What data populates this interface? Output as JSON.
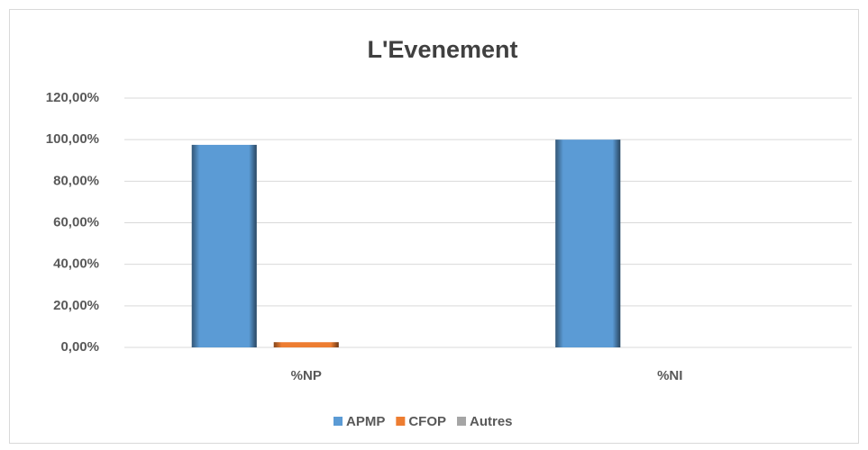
{
  "chart_data": {
    "type": "bar",
    "title": "L'Evenement",
    "categories": [
      "%NP",
      "%NI"
    ],
    "series": [
      {
        "name": "APMP",
        "color": "#5b9bd5",
        "values": [
          97.5,
          100
        ]
      },
      {
        "name": "CFOP",
        "color": "#ed7d31",
        "values": [
          2.5,
          0
        ]
      },
      {
        "name": "Autres",
        "color": "#a5a5a5",
        "values": [
          0,
          0
        ]
      }
    ],
    "ylim": [
      0,
      120
    ],
    "yticks": [
      {
        "value": 0,
        "label": "0,00%"
      },
      {
        "value": 20,
        "label": "20,00%"
      },
      {
        "value": 40,
        "label": "40,00%"
      },
      {
        "value": 60,
        "label": "60,00%"
      },
      {
        "value": 80,
        "label": "80,00%"
      },
      {
        "value": 100,
        "label": "100,00%"
      },
      {
        "value": 120,
        "label": "120,00%"
      }
    ],
    "grid": true,
    "legend": "bottom"
  }
}
